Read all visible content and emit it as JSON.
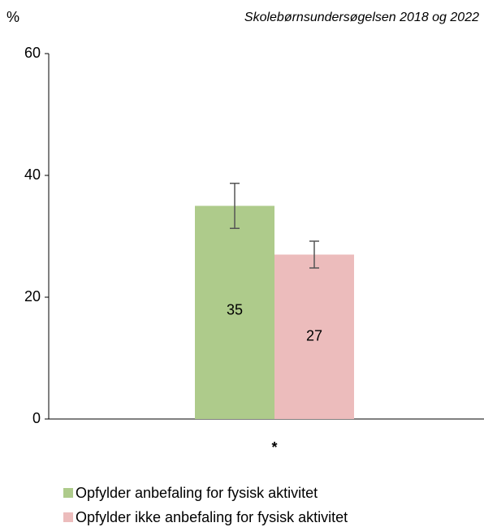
{
  "chart_data": {
    "type": "bar",
    "unit_label": "%",
    "subtitle": "Skolebørnsundersøgelsen 2018 og 2022",
    "categories": [
      "*"
    ],
    "series": [
      {
        "name": "Opfylder anbefaling for fysisk aktivitet",
        "color": "#aecb8b",
        "values": [
          35
        ],
        "errors": [
          3.7
        ]
      },
      {
        "name": "Opfylder ikke anbefaling for fysisk aktivitet",
        "color": "#ecbcbc",
        "values": [
          27
        ],
        "errors": [
          2.2
        ]
      }
    ],
    "ylim": [
      0,
      60
    ],
    "yticks": [
      0,
      20,
      40,
      60
    ],
    "grid": false
  }
}
